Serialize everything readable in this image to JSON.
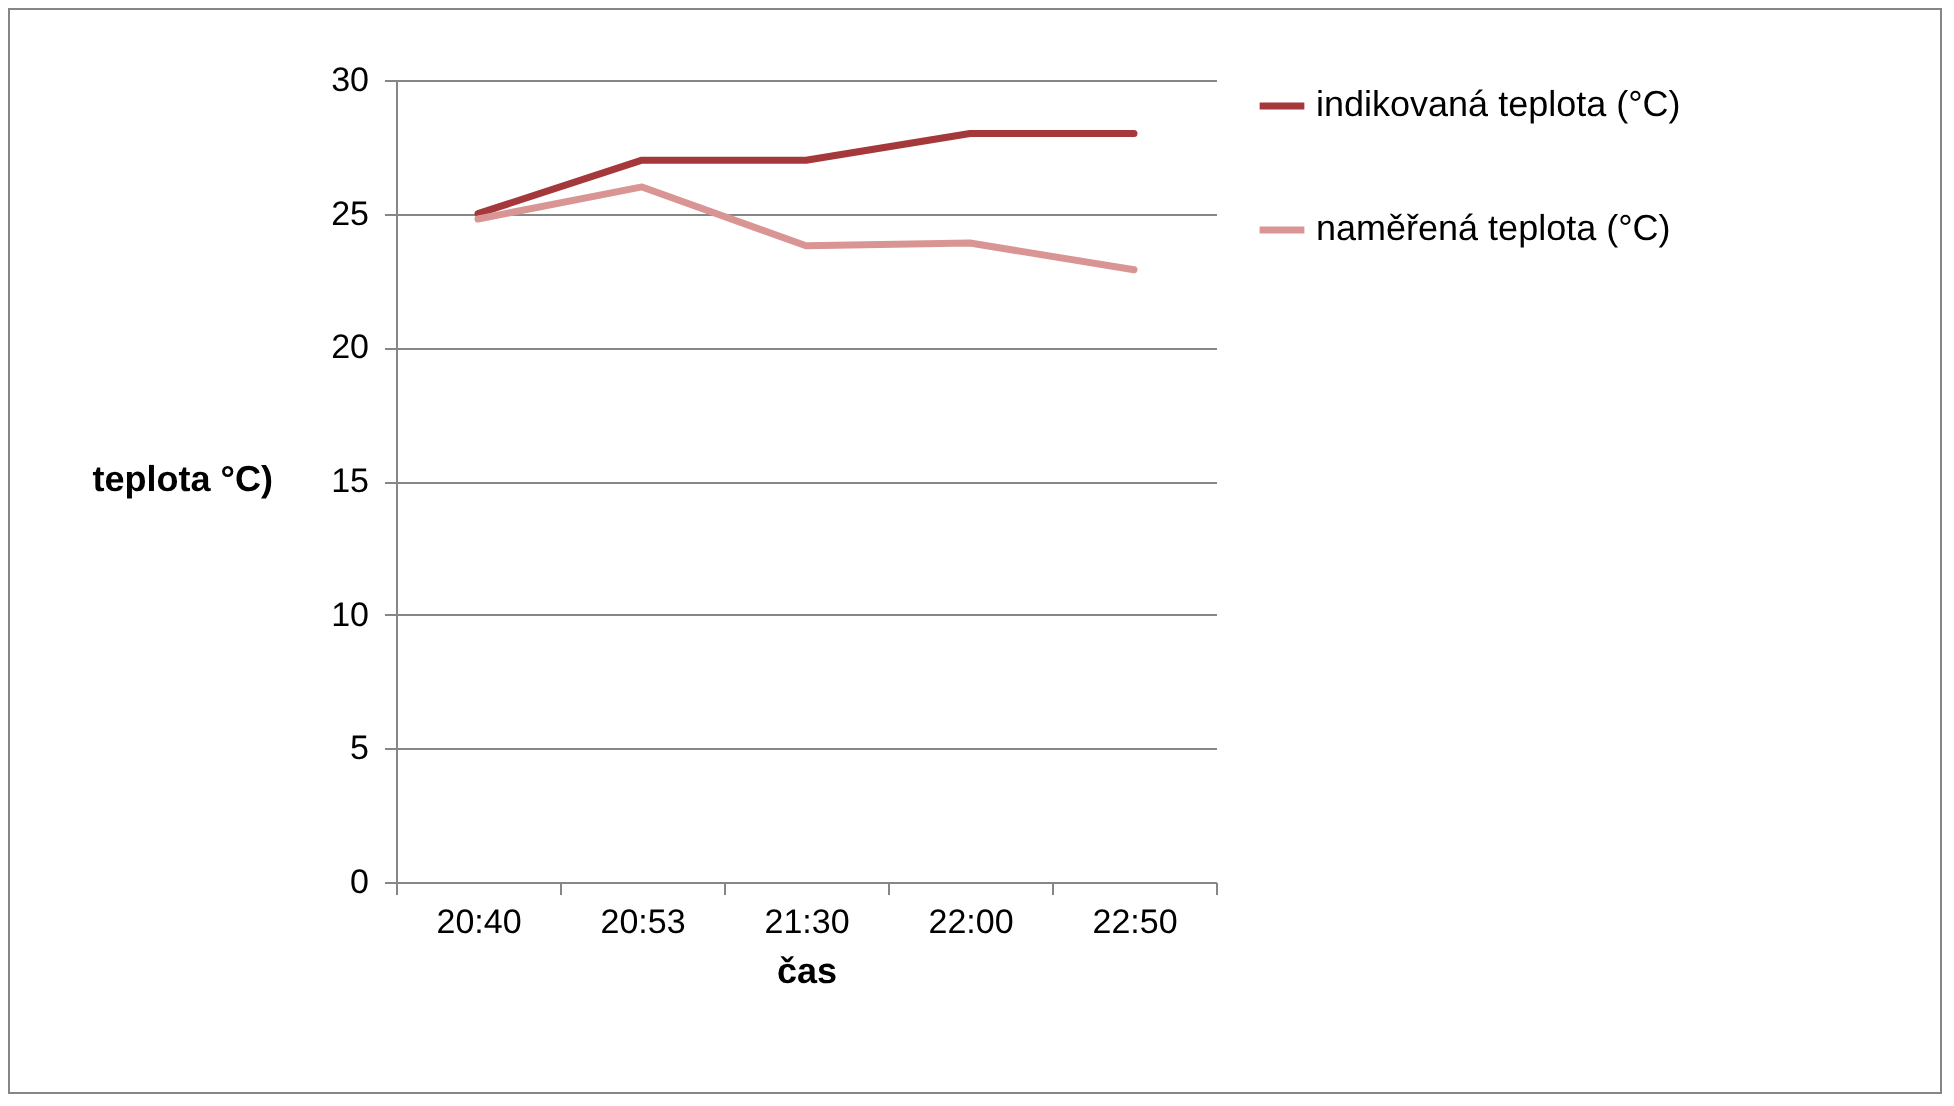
{
  "chart_data": {
    "type": "line",
    "xlabel": "čas",
    "ylabel": "teplota °C)",
    "categories": [
      "20:40",
      "20:53",
      "21:30",
      "22:00",
      "22:50"
    ],
    "series": [
      {
        "name": "indikovaná teplota (°C)",
        "color": "#a5383a",
        "values": [
          25,
          27,
          27,
          28,
          28
        ]
      },
      {
        "name": "naměřená teplota (°C)",
        "color": "#d99594",
        "values": [
          24.8,
          26,
          23.8,
          23.9,
          22.9
        ]
      }
    ],
    "ylim": [
      0,
      30
    ],
    "yticks": [
      0,
      5,
      10,
      15,
      20,
      25,
      30
    ],
    "grid": "y",
    "legend": "right",
    "marker": "none",
    "line_style": "solid"
  }
}
